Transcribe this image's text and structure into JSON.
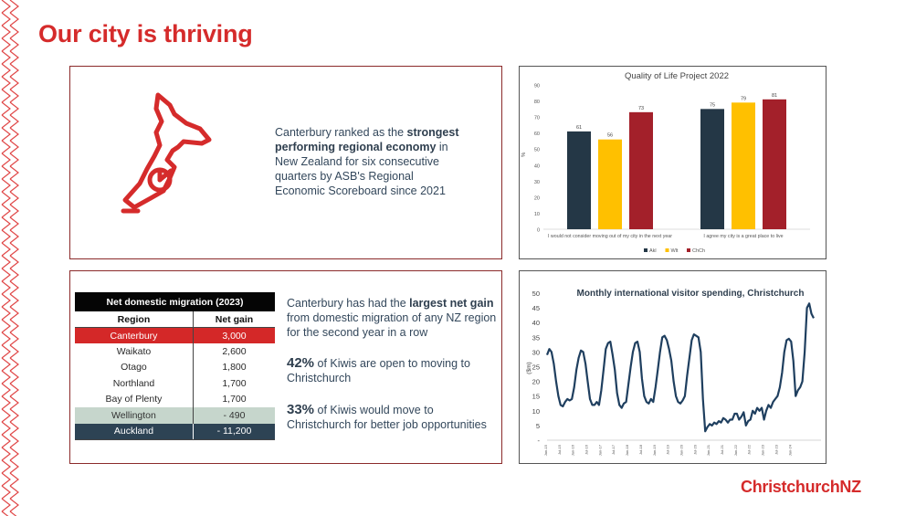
{
  "title": "Our city is thriving",
  "brand": "ChristchurchNZ",
  "economy": {
    "text_before": "Canterbury ranked as the ",
    "text_bold": "strongest performing regional economy",
    "text_after": " in New Zealand for six consecutive quarters by ASB's Regional Economic Scoreboard since 2021"
  },
  "migration_table": {
    "title": "Net domestic migration (2023)",
    "headers": [
      "Region",
      "Net gain"
    ],
    "rows": [
      {
        "region": "Canterbury",
        "value": "3,000",
        "style": "red"
      },
      {
        "region": "Waikato",
        "value": "2,600",
        "style": "plain"
      },
      {
        "region": "Otago",
        "value": "1,800",
        "style": "plain"
      },
      {
        "region": "Northland",
        "value": "1,700",
        "style": "plain"
      },
      {
        "region": "Bay of Plenty",
        "value": "1,700",
        "style": "plain"
      },
      {
        "region": "Wellington",
        "value": "- 490",
        "style": "grey"
      },
      {
        "region": "Auckland",
        "value": "- 11,200",
        "style": "navy"
      }
    ]
  },
  "migration_text": {
    "p1_before": "Canterbury has had the ",
    "p1_bold": "largest net gain",
    "p1_after": " from domestic migration of any NZ region for the second year in a row",
    "p2_pct": "42%",
    "p2_text": " of Kiwis are open to moving to Christchurch",
    "p3_pct": "33%",
    "p3_text": " of Kiwis would move to Christchurch for better job opportunities"
  },
  "chart_data": [
    {
      "type": "bar",
      "title": "Quality of Life Project 2022",
      "ylabel": "%",
      "ylim": [
        0,
        90
      ],
      "yticks": [
        0,
        10,
        20,
        30,
        40,
        50,
        60,
        70,
        80,
        90
      ],
      "categories": [
        "I would not consider moving out of my city in the next year",
        "I agree my city is a great place to live"
      ],
      "series": [
        {
          "name": "Akl",
          "values": [
            61,
            75
          ],
          "color": "#243746"
        },
        {
          "name": "Wlt",
          "values": [
            56,
            79
          ],
          "color": "#ffc000"
        },
        {
          "name": "ChCh",
          "values": [
            73,
            81
          ],
          "color": "#a3202a"
        }
      ],
      "legend": "bottom",
      "data_labels": true
    },
    {
      "type": "line",
      "title": "Monthly international visitor spending, Christchurch",
      "ylabel": "($m)",
      "ylim": [
        0,
        50
      ],
      "yticks": [
        "-",
        "5",
        "10",
        "15",
        "20",
        "25",
        "30",
        "35",
        "40",
        "45",
        "50"
      ],
      "xticks": [
        "Jan-15",
        "Jul-15",
        "Jan-16",
        "Jul-16",
        "Jan-17",
        "Jul-17",
        "Jan-18",
        "Jul-18",
        "Jan-19",
        "Jul-19",
        "Jan-20",
        "Jul-20",
        "Jan-21",
        "Jul-21",
        "Jan-22",
        "Jul-22",
        "Jan-23",
        "Jul-23",
        "Jan-24"
      ],
      "line_color": "#1f3f5f",
      "values": [
        29,
        31,
        30,
        26,
        20,
        15,
        12,
        11.5,
        13,
        14,
        13.5,
        14,
        18,
        24,
        28,
        30.5,
        30,
        26,
        20,
        14,
        12,
        12,
        13,
        12,
        17,
        24,
        31,
        33,
        33.5,
        29,
        24,
        16,
        12,
        11,
        12.5,
        13,
        19,
        25,
        30,
        33,
        33.5,
        30,
        21,
        15,
        13,
        12.5,
        14,
        13,
        18,
        24,
        30,
        35,
        35.5,
        34,
        31,
        27,
        20,
        15,
        13,
        12.5,
        13.5,
        15,
        22,
        28,
        34,
        36,
        35.5,
        35,
        30,
        14,
        3,
        4.5,
        5.5,
        5,
        6,
        5.5,
        6.5,
        6,
        7.5,
        7,
        6,
        7,
        7,
        9,
        9,
        7,
        8,
        9.5,
        5,
        6.5,
        7,
        10,
        9,
        11,
        10,
        11,
        7,
        10,
        12,
        11,
        13,
        14,
        15,
        18,
        23,
        30,
        34,
        34.5,
        33.5,
        27,
        15,
        17,
        18,
        20,
        30,
        45,
        46.5,
        43,
        41.5
      ]
    }
  ]
}
